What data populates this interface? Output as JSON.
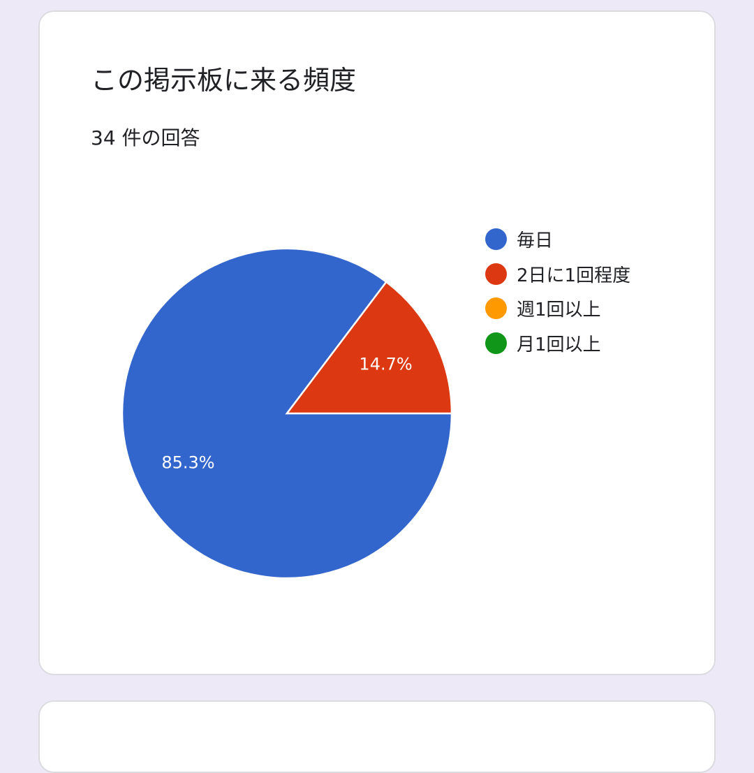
{
  "question": {
    "title": "この掲示板に来る頻度",
    "response_count": "34 件の回答"
  },
  "chart_data": {
    "type": "pie",
    "categories": [
      "毎日",
      "2日に1回程度",
      "週1回以上",
      "月1回以上"
    ],
    "values": [
      85.3,
      14.7,
      0,
      0
    ],
    "data_labels": [
      "85.3%",
      "14.7%",
      "",
      ""
    ],
    "colors": [
      "#3366cc",
      "#dc3912",
      "#ff9900",
      "#109618"
    ],
    "legend_position": "right"
  }
}
